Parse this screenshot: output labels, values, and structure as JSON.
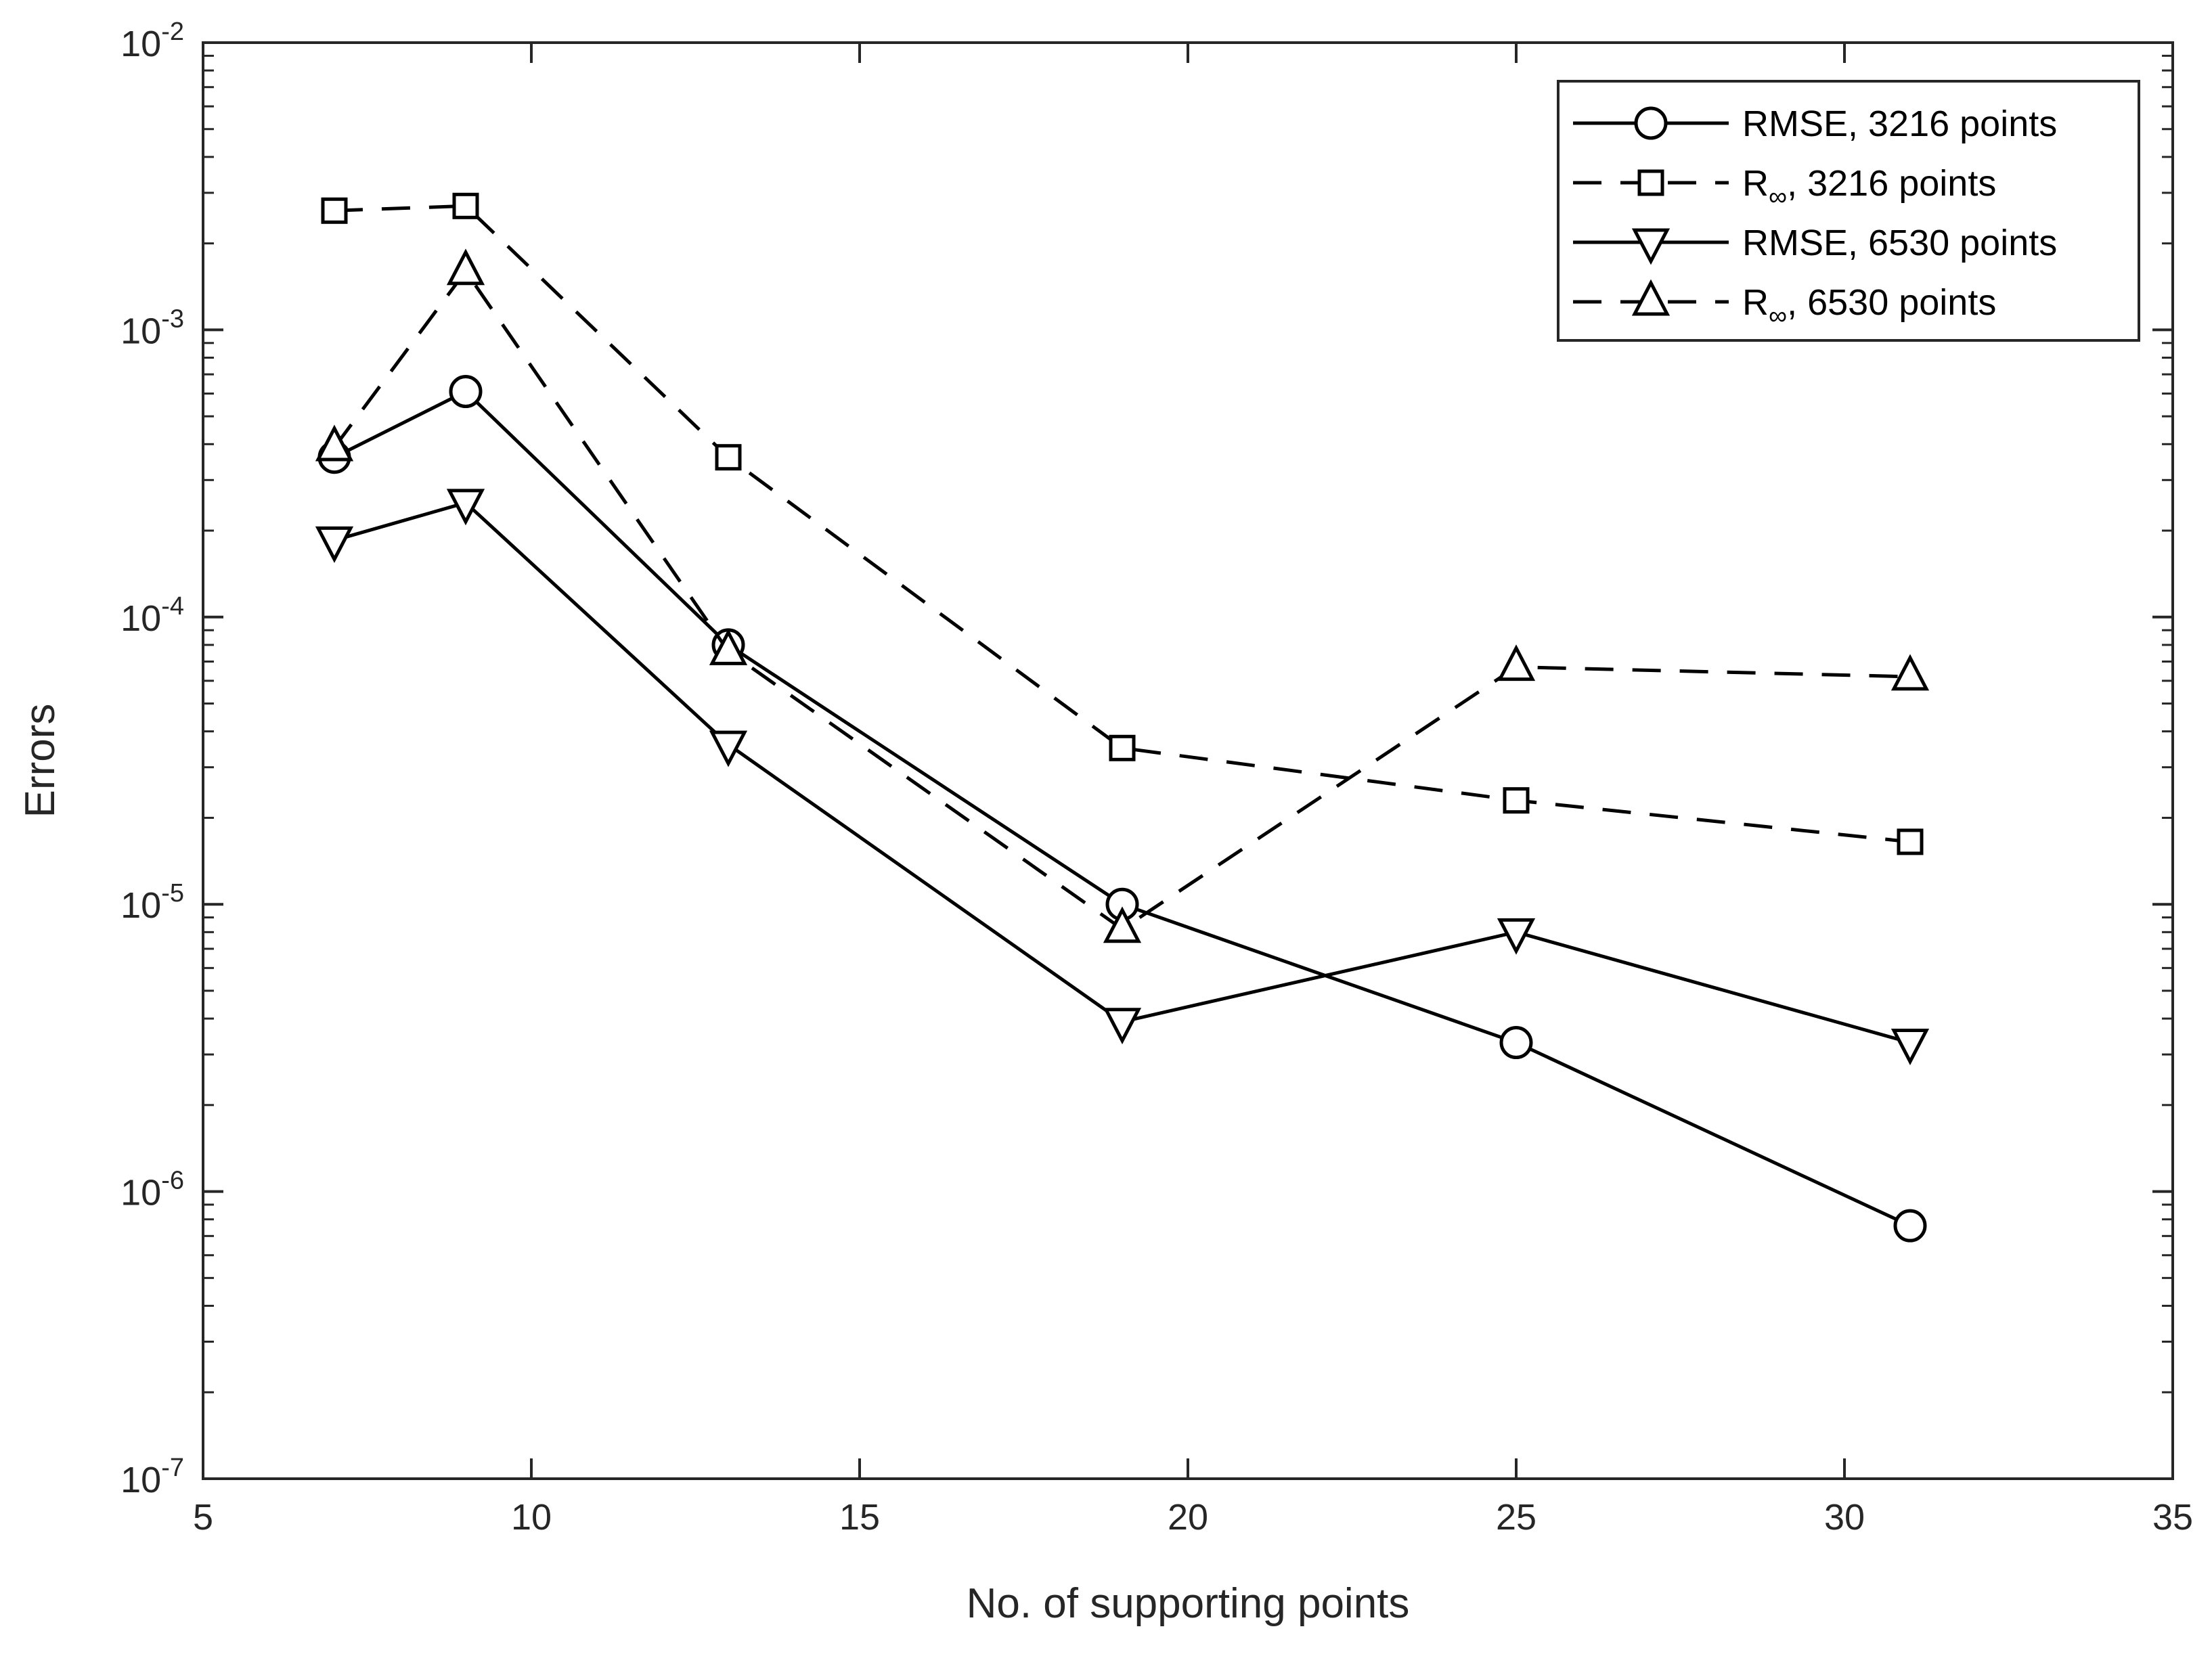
{
  "chart_data": {
    "type": "line",
    "title": "",
    "xlabel": "No. of supporting points",
    "ylabel": "Errors",
    "xscale": "linear",
    "yscale": "log",
    "xlim": [
      5,
      35
    ],
    "ylim": [
      1e-07,
      0.01
    ],
    "xticks": [
      5,
      10,
      15,
      20,
      25,
      30,
      35
    ],
    "xtick_labels": [
      "5",
      "10",
      "15",
      "20",
      "25",
      "30",
      "35"
    ],
    "yticks": [
      1e-07,
      1e-06,
      1e-05,
      0.0001,
      0.001,
      0.01
    ],
    "ytick_labels": [
      {
        "base": "10",
        "exp": "-7"
      },
      {
        "base": "10",
        "exp": "-6"
      },
      {
        "base": "10",
        "exp": "-5"
      },
      {
        "base": "10",
        "exp": "-4"
      },
      {
        "base": "10",
        "exp": "-3"
      },
      {
        "base": "10",
        "exp": "-2"
      }
    ],
    "grid": false,
    "legend_position": "top-right",
    "x": [
      7,
      9,
      13,
      19,
      25,
      31
    ],
    "series": [
      {
        "name": "RMSE, 3216 points",
        "legend_main": "RMSE, 3216 points",
        "legend_sub": "",
        "legend_rest": "",
        "line_style": "solid",
        "marker": "circle",
        "values": [
          0.00036,
          0.00061,
          8e-05,
          1e-05,
          3.3e-06,
          7.6e-07
        ]
      },
      {
        "name": "R∞, 3216 points",
        "legend_main": "R",
        "legend_sub": "∞",
        "legend_rest": ", 3216 points",
        "line_style": "dashed",
        "marker": "square",
        "values": [
          0.0026,
          0.0027,
          0.00036,
          3.5e-05,
          2.3e-05,
          1.65e-05
        ]
      },
      {
        "name": "RMSE, 6530 points",
        "legend_main": "RMSE, 6530 points",
        "legend_sub": "",
        "legend_rest": "",
        "line_style": "solid",
        "marker": "triangle-down",
        "values": [
          0.000185,
          0.00025,
          3.6e-05,
          3.9e-06,
          8e-06,
          3.3e-06
        ]
      },
      {
        "name": "R∞, 6530 points",
        "legend_main": "R",
        "legend_sub": "∞",
        "legend_rest": ", 6530 points",
        "line_style": "dashed",
        "marker": "triangle-up",
        "values": [
          0.00039,
          0.0016,
          7.6e-05,
          8.2e-06,
          6.7e-05,
          6.2e-05
        ]
      }
    ]
  }
}
